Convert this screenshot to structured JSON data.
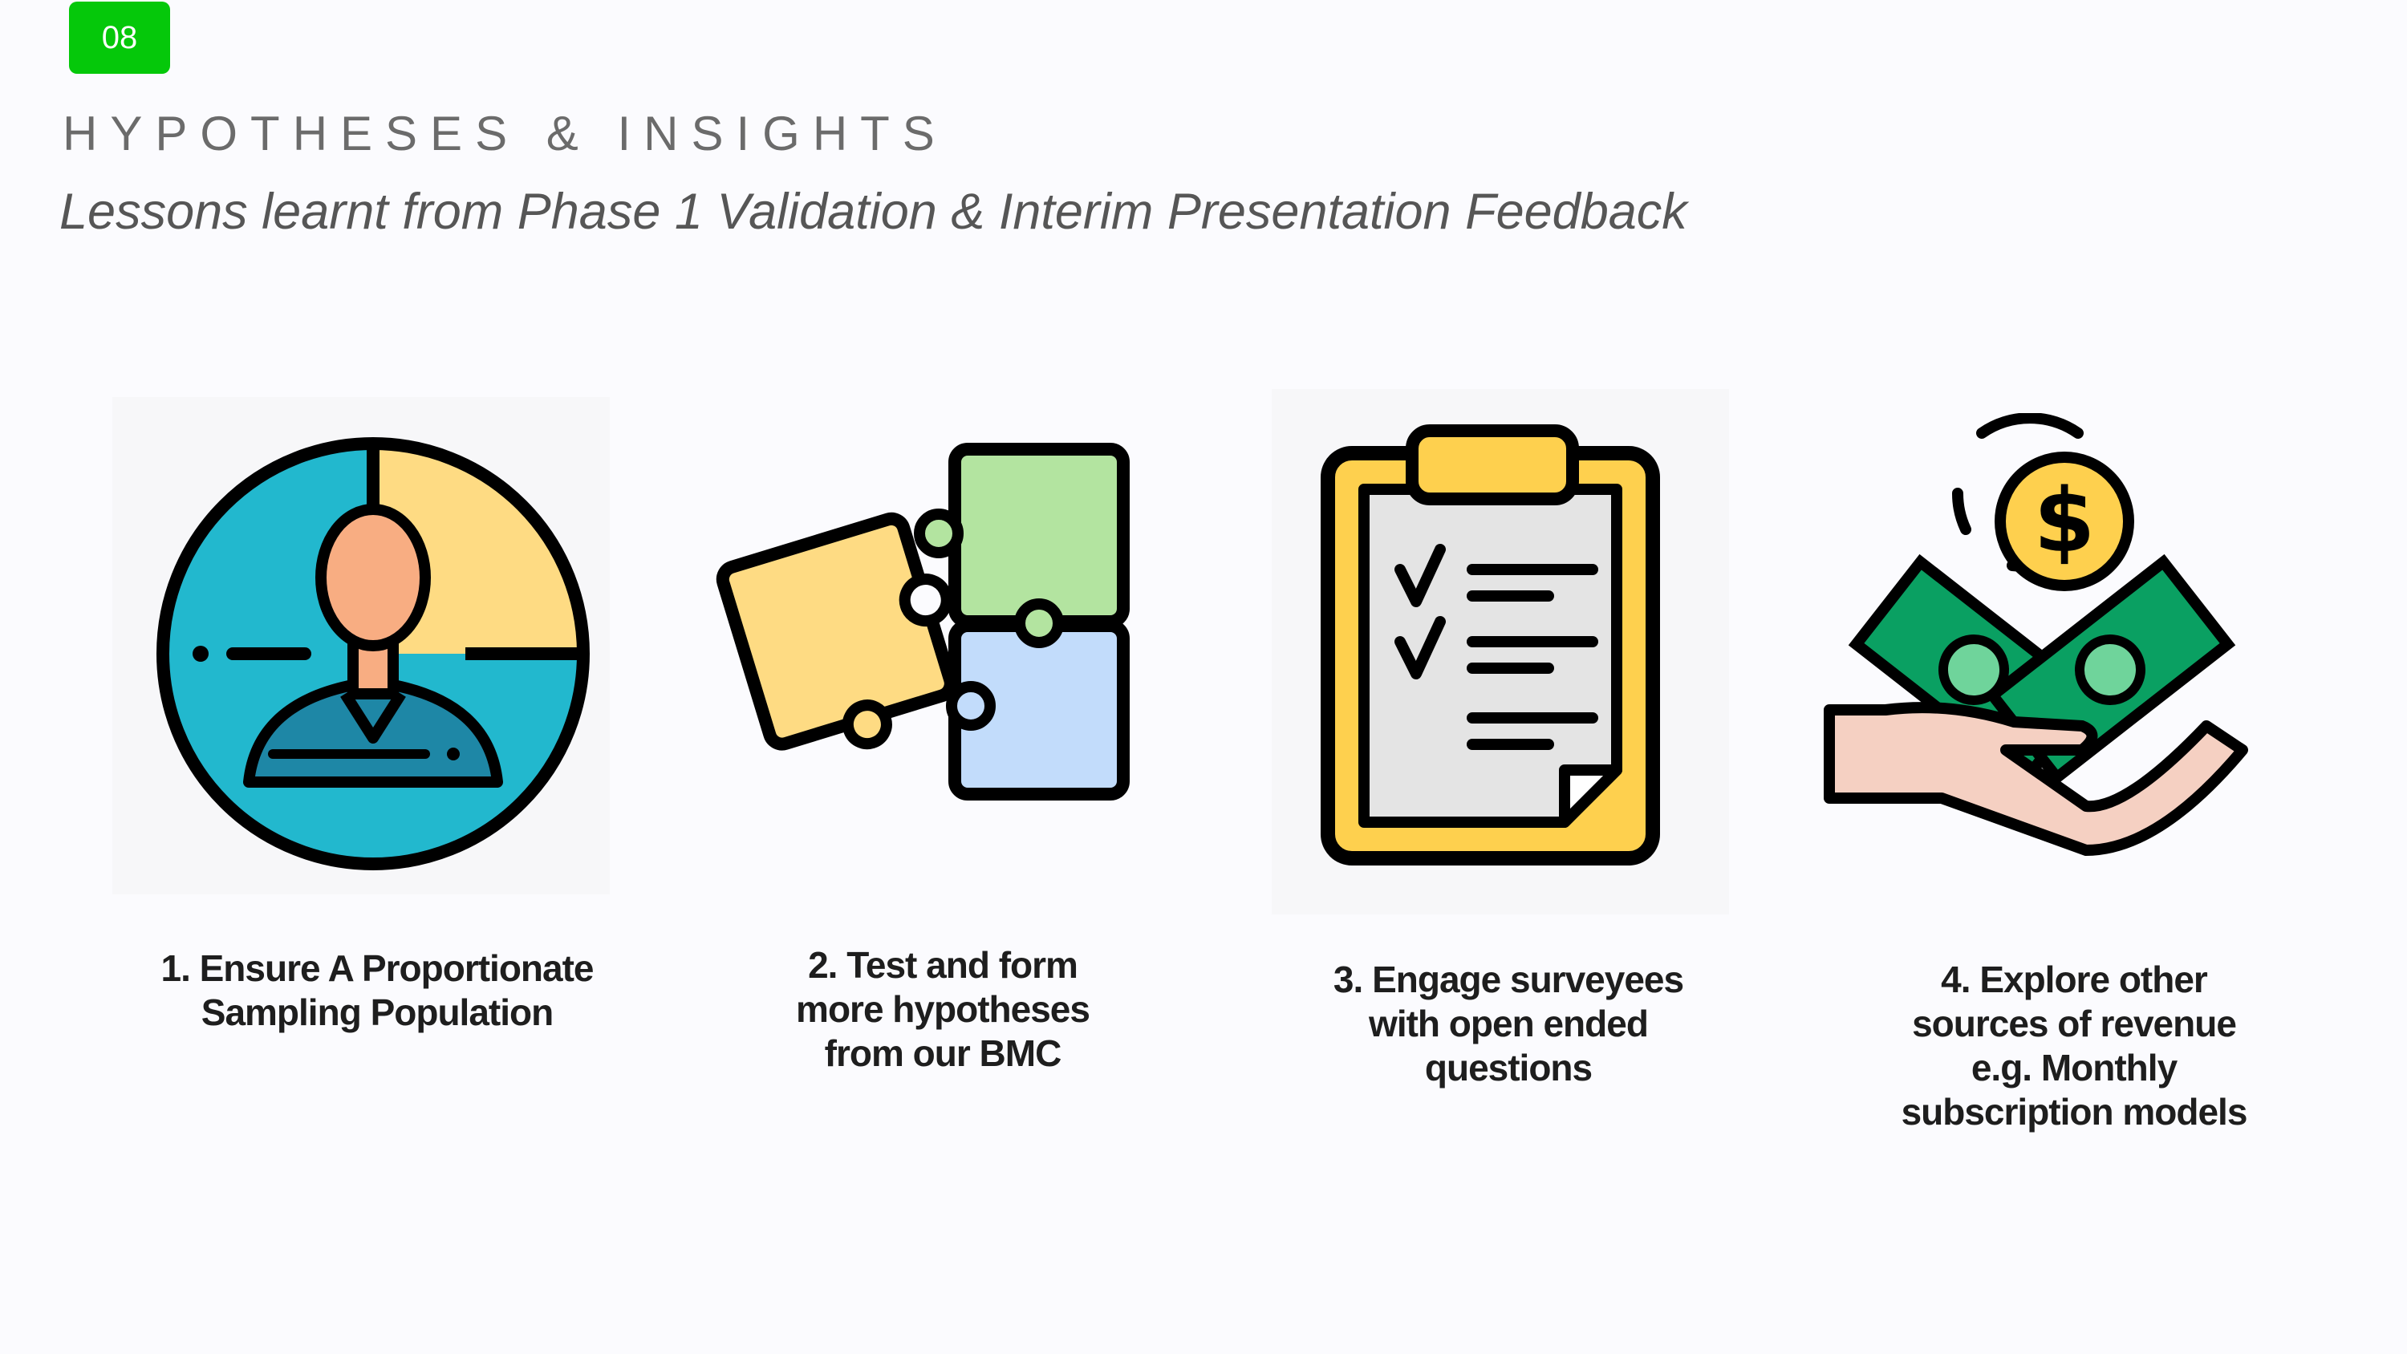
{
  "slide": {
    "number": "08",
    "title": "HYPOTHESES & INSIGHTS",
    "subtitle": "Lessons learnt from Phase 1 Validation & Interim Presentation Feedback"
  },
  "insights": [
    {
      "line1": "1. Ensure A Proportionate",
      "line2": "Sampling Population",
      "icon": "target-person-icon"
    },
    {
      "line1": "2. Test and form",
      "line2": "more hypotheses",
      "line3": "from our BMC",
      "icon": "puzzle-icon"
    },
    {
      "line1": "3. Engage surveyees",
      "line2": "with open ended",
      "line3": "questions",
      "icon": "clipboard-checklist-icon"
    },
    {
      "line1": "4. Explore other",
      "line2": "sources of revenue",
      "line3": "e.g. Monthly",
      "line4": "subscription models",
      "icon": "money-hand-icon"
    }
  ],
  "colors": {
    "badge": "#05c80a",
    "teal": "#22b8ce",
    "yellow": "#fedb83",
    "skin": "#f8ad82",
    "shirt": "#1e87a6",
    "green": "#b3e4a0",
    "blue": "#c2dcfb",
    "clipboard": "#fed04e",
    "cash": "#0aa062"
  }
}
